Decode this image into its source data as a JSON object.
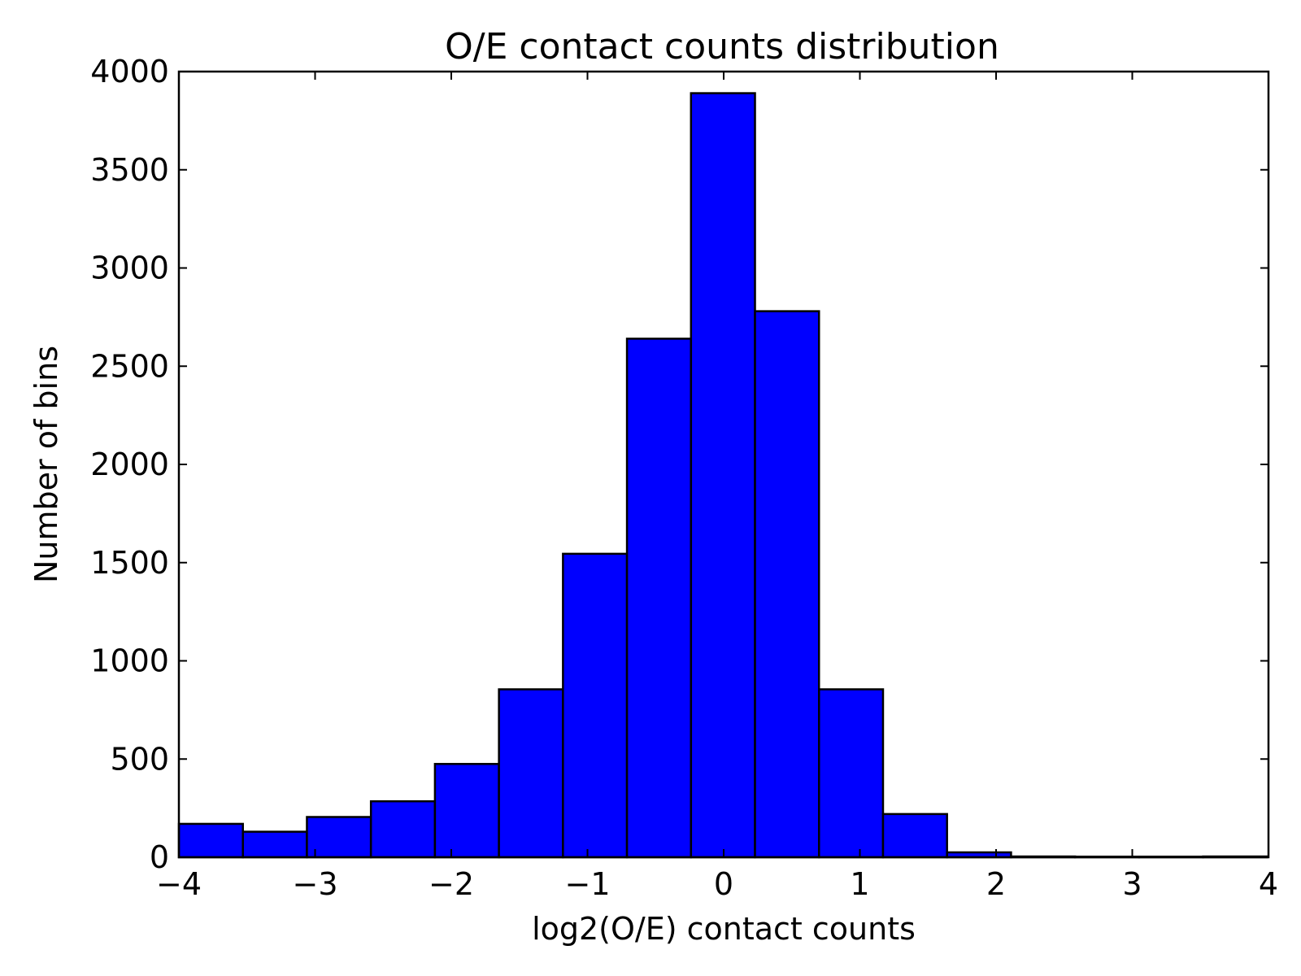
{
  "chart_data": {
    "type": "bar",
    "title": "O/E contact counts distribution",
    "xlabel": "log2(O/E) contact counts",
    "ylabel": "Number of bins",
    "xlim": [
      -4,
      4
    ],
    "ylim": [
      0,
      4000
    ],
    "xticks": [
      -4,
      -3,
      -2,
      -1,
      0,
      1,
      2,
      3,
      4
    ],
    "xtick_labels": [
      "−4",
      "−3",
      "−2",
      "−1",
      "0",
      "1",
      "2",
      "3",
      "4"
    ],
    "yticks": [
      0,
      500,
      1000,
      1500,
      2000,
      2500,
      3000,
      3500,
      4000
    ],
    "ytick_labels": [
      "0",
      "500",
      "1000",
      "1500",
      "2000",
      "2500",
      "3000",
      "3500",
      "4000"
    ],
    "bin_edges": [
      -4.0,
      -3.53,
      -3.06,
      -2.59,
      -2.12,
      -1.65,
      -1.18,
      -0.71,
      -0.24,
      0.23,
      0.7,
      1.17,
      1.64,
      2.11,
      2.58,
      3.05,
      3.52,
      3.99
    ],
    "values": [
      170,
      130,
      205,
      285,
      475,
      855,
      1545,
      2640,
      3890,
      2780,
      855,
      220,
      25,
      4,
      3,
      3,
      4
    ],
    "bar_color": "#0000ff",
    "grid": false,
    "legend": false
  }
}
